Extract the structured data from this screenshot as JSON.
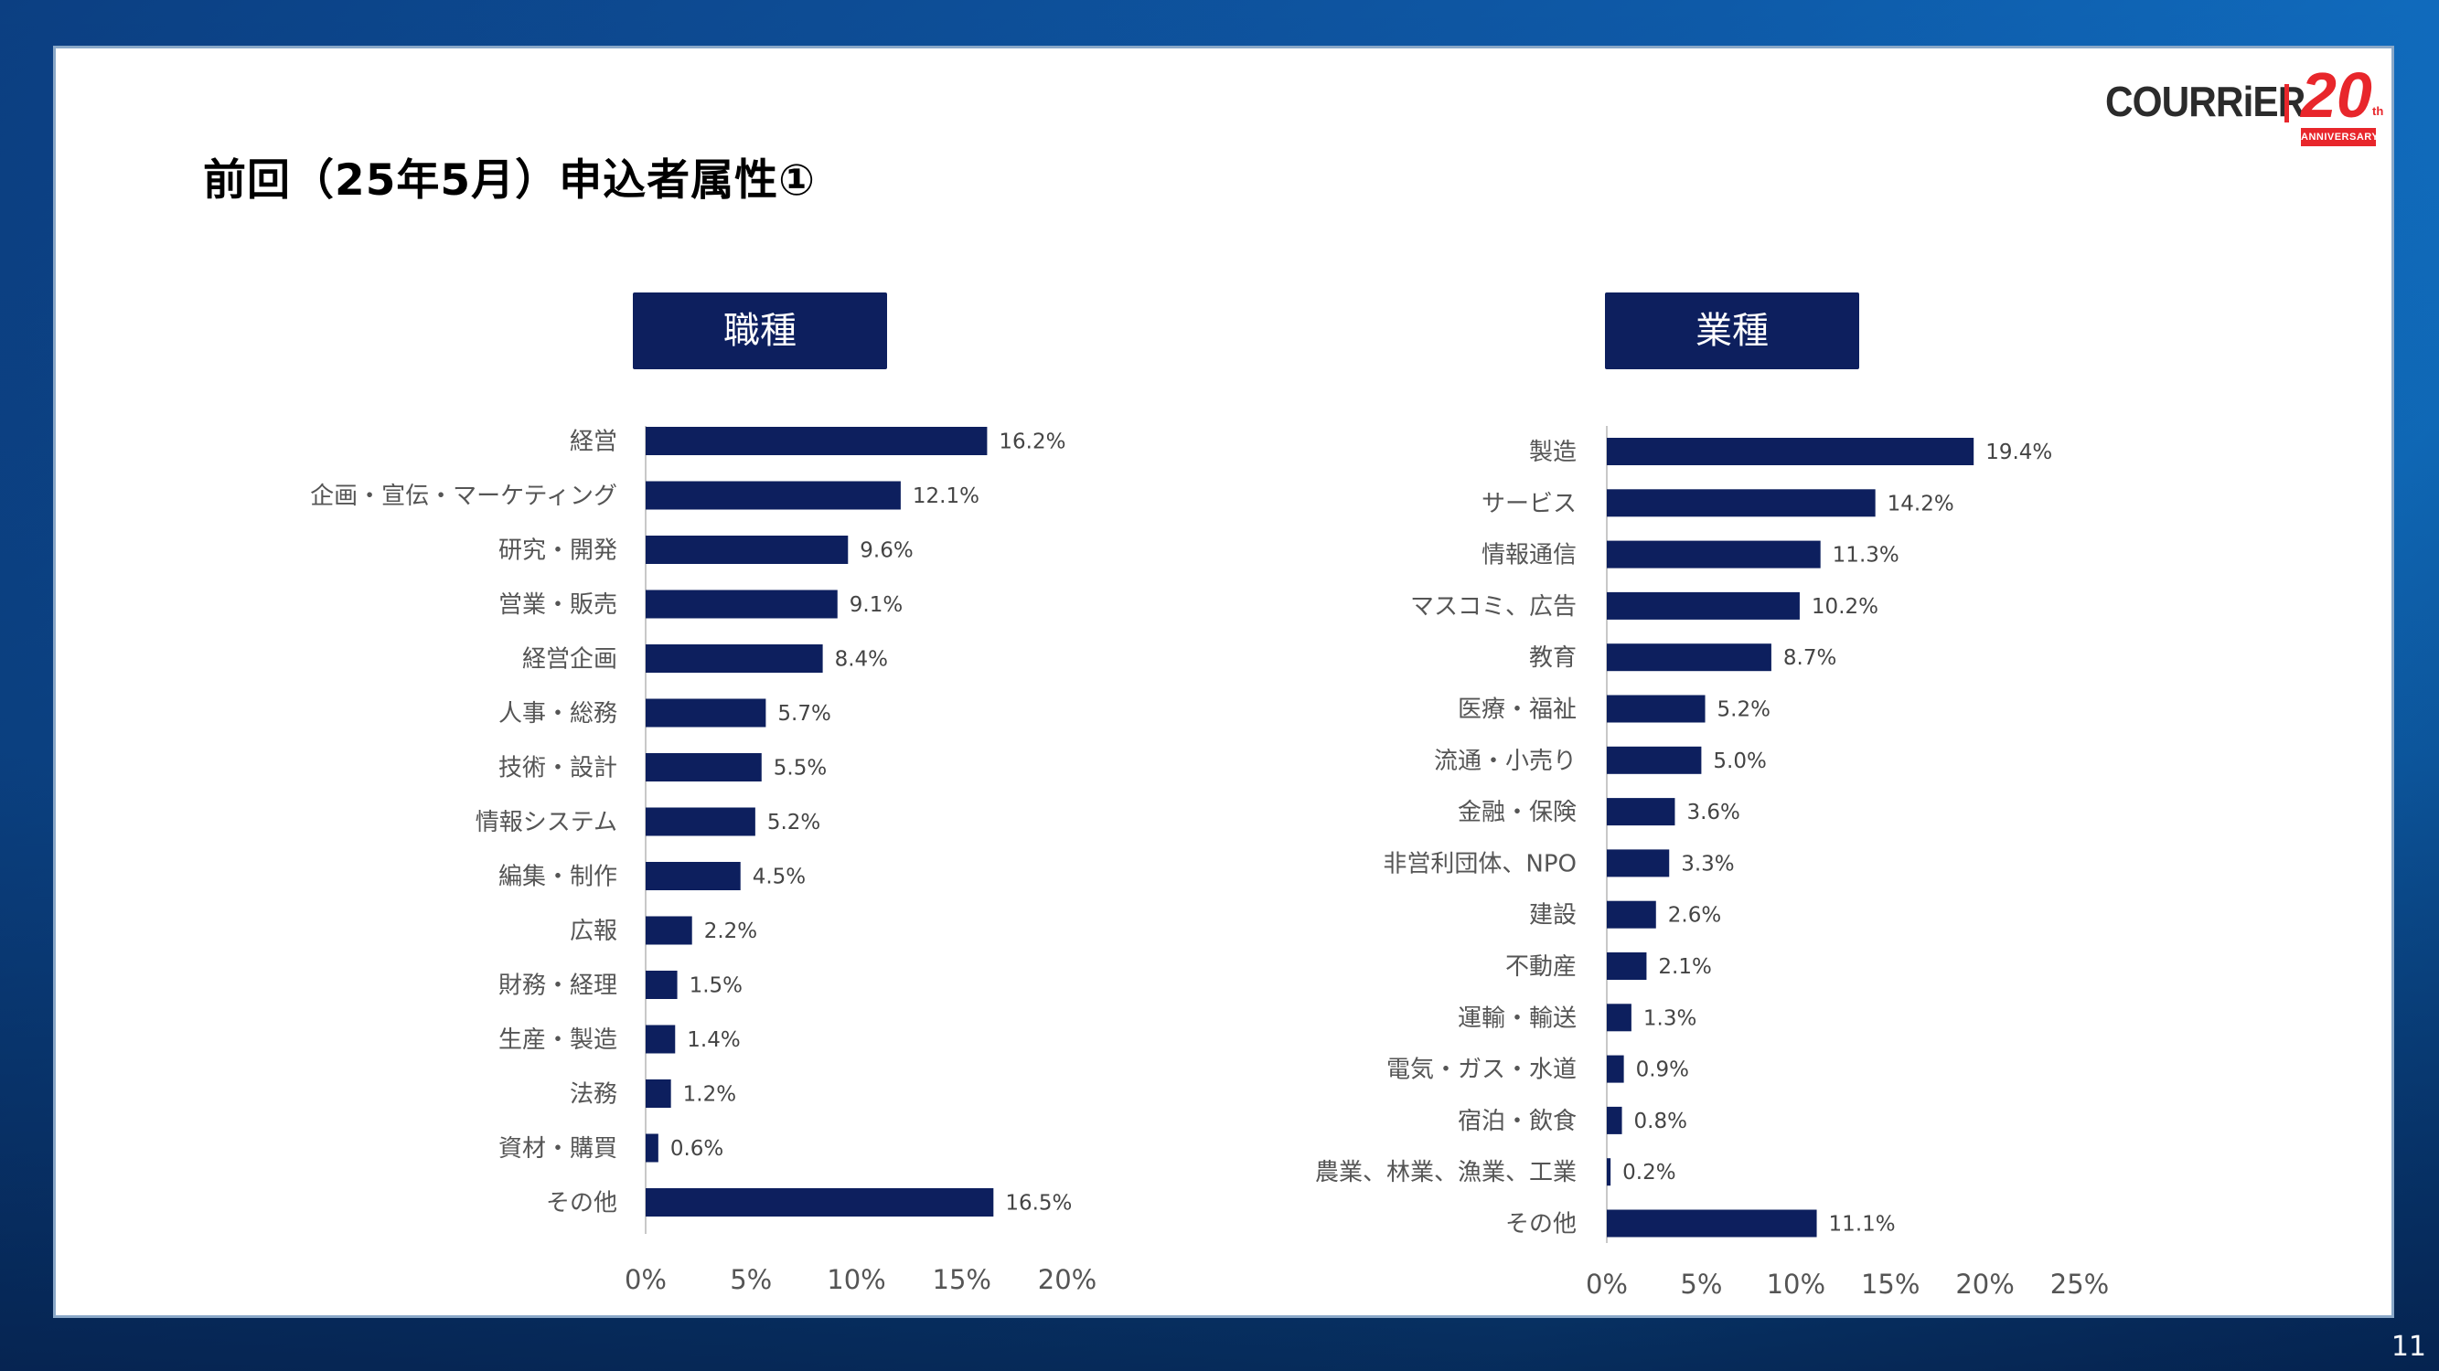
{
  "title": "前回（25年5月）申込者属性①",
  "logo": {
    "brand": "COURRiER",
    "number": "20",
    "suffix": "th",
    "tagline": "ANNIVERSARY"
  },
  "page_number": "11",
  "colors": {
    "bar": "#0d1f5e",
    "header_bg": "#0d1f5e",
    "accent": "#e8262b"
  },
  "chart_data": [
    {
      "type": "bar",
      "orientation": "horizontal",
      "title": "職種",
      "categories": [
        "経営",
        "企画・宣伝・マーケティング",
        "研究・開発",
        "営業・販売",
        "経営企画",
        "人事・総務",
        "技術・設計",
        "情報システム",
        "編集・制作",
        "広報",
        "財務・経理",
        "生産・製造",
        "法務",
        "資材・購買",
        "その他"
      ],
      "values": [
        16.2,
        12.1,
        9.6,
        9.1,
        8.4,
        5.7,
        5.5,
        5.2,
        4.5,
        2.2,
        1.5,
        1.4,
        1.2,
        0.6,
        16.5
      ],
      "data_labels": [
        "16.2%",
        "12.1%",
        "9.6%",
        "9.1%",
        "8.4%",
        "5.7%",
        "5.5%",
        "5.2%",
        "4.5%",
        "2.2%",
        "1.5%",
        "1.4%",
        "1.2%",
        "0.6%",
        "16.5%"
      ],
      "xlim": [
        0,
        20
      ],
      "x_ticks": [
        0,
        5,
        10,
        15,
        20
      ],
      "x_tick_labels": [
        "0%",
        "5%",
        "10%",
        "15%",
        "20%"
      ],
      "grid": false
    },
    {
      "type": "bar",
      "orientation": "horizontal",
      "title": "業種",
      "categories": [
        "製造",
        "サービス",
        "情報通信",
        "マスコミ、広告",
        "教育",
        "医療・福祉",
        "流通・小売り",
        "金融・保険",
        "非営利団体、NPO",
        "建設",
        "不動産",
        "運輸・輸送",
        "電気・ガス・水道",
        "宿泊・飲食",
        "農業、林業、漁業、工業",
        "その他"
      ],
      "values": [
        19.4,
        14.2,
        11.3,
        10.2,
        8.7,
        5.2,
        5.0,
        3.6,
        3.3,
        2.6,
        2.1,
        1.3,
        0.9,
        0.8,
        0.2,
        11.1
      ],
      "data_labels": [
        "19.4%",
        "14.2%",
        "11.3%",
        "10.2%",
        "8.7%",
        "5.2%",
        "5.0%",
        "3.6%",
        "3.3%",
        "2.6%",
        "2.1%",
        "1.3%",
        "0.9%",
        "0.8%",
        "0.2%",
        "11.1%"
      ],
      "xlim": [
        0,
        25
      ],
      "x_ticks": [
        0,
        5,
        10,
        15,
        20,
        25
      ],
      "x_tick_labels": [
        "0%",
        "5%",
        "10%",
        "15%",
        "20%",
        "25%"
      ],
      "grid": false
    }
  ]
}
